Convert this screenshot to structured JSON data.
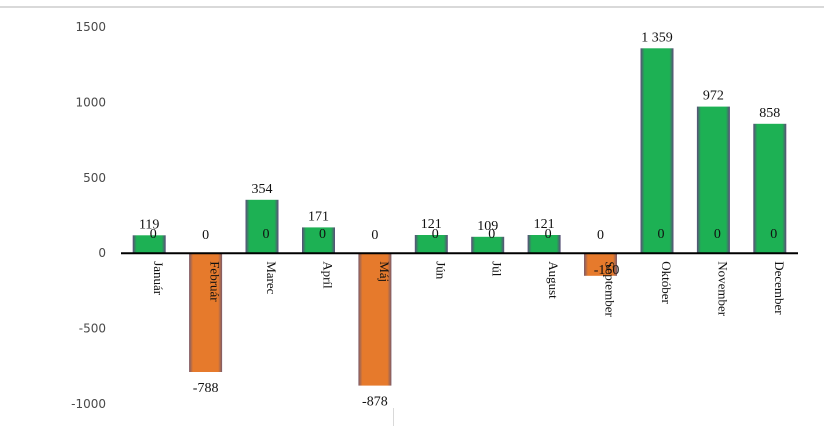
{
  "chart_data": {
    "type": "bar",
    "categories": [
      "Január",
      "Február",
      "Marec",
      "Apríl",
      "Máj",
      "Jún",
      "Júl",
      "August",
      "September",
      "Október",
      "November",
      "December"
    ],
    "series": [
      {
        "values": [
          119,
          -788,
          354,
          171,
          -878,
          121,
          109,
          121,
          -150,
          1359,
          972,
          858
        ],
        "labels": [
          "119",
          "-788",
          "354",
          "171",
          "-878",
          "121",
          "109",
          "121",
          "-150",
          "1 359",
          "972",
          "858"
        ]
      },
      {
        "values": [
          0,
          0,
          0,
          0,
          0,
          0,
          0,
          0,
          0,
          0,
          0,
          0
        ],
        "labels": [
          "0",
          "0",
          "0",
          "0",
          "0",
          "0",
          "0",
          "0",
          "0",
          "0",
          "0",
          "0"
        ]
      }
    ],
    "ylim": [
      -1000,
      1500
    ],
    "yticks": [
      1500,
      1000,
      500,
      0,
      -500,
      -1000
    ],
    "ytick_labels": [
      "1500",
      "1000",
      "500",
      "0",
      "-500",
      "-1000"
    ],
    "colors": {
      "positive": "#1db154",
      "negative": "#e67a2c"
    },
    "grid": false,
    "legend": "none"
  }
}
